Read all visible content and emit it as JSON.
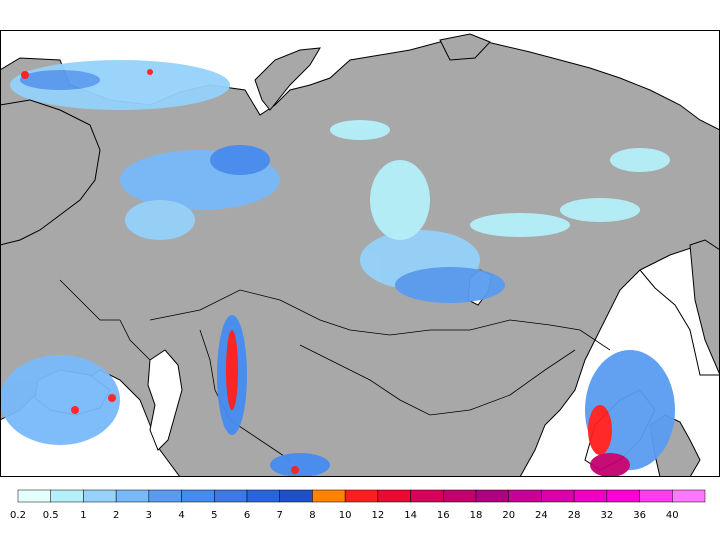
{
  "map": {
    "background_ocean": "#ffffff",
    "land_color": "#a8a8a8",
    "border_color": "#000000"
  },
  "legend": {
    "bins": [
      {
        "label": "0.2",
        "color": "#e6ffff"
      },
      {
        "label": "0.5",
        "color": "#b4f0fa"
      },
      {
        "label": "1",
        "color": "#96d2fa"
      },
      {
        "label": "2",
        "color": "#78b9fa"
      },
      {
        "label": "3",
        "color": "#5a9bf0"
      },
      {
        "label": "4",
        "color": "#468cf0"
      },
      {
        "label": "5",
        "color": "#3c78e6"
      },
      {
        "label": "6",
        "color": "#2864dc"
      },
      {
        "label": "7",
        "color": "#1e50c8"
      },
      {
        "label": "8",
        "color": "#ff8200"
      },
      {
        "label": "10",
        "color": "#ff1e1e"
      },
      {
        "label": "12",
        "color": "#eb0a32"
      },
      {
        "label": "14",
        "color": "#d7005a"
      },
      {
        "label": "16",
        "color": "#c3006e"
      },
      {
        "label": "18",
        "color": "#af0082"
      },
      {
        "label": "20",
        "color": "#c80096"
      },
      {
        "label": "24",
        "color": "#dc00aa"
      },
      {
        "label": "28",
        "color": "#f000c3"
      },
      {
        "label": "32",
        "color": "#ff00d7"
      },
      {
        "label": "36",
        "color": "#ff3cf0"
      },
      {
        "label": "40",
        "color": "#ff78ff"
      }
    ]
  }
}
